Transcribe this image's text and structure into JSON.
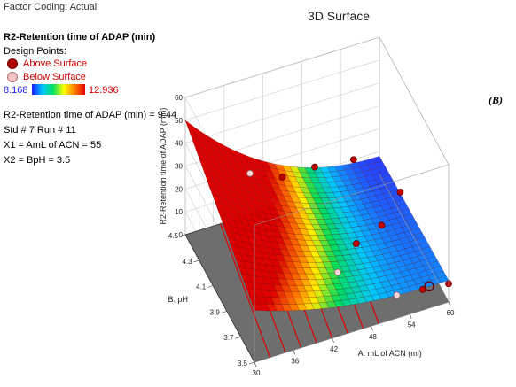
{
  "factor_coding": "Factor Coding: Actual",
  "response_title": "R2-Retention time of ADAP (min)",
  "design_points_label": "Design Points:",
  "legend": {
    "above": "Above Surface",
    "below": "Below Surface"
  },
  "color_scale": {
    "min": "8.168",
    "max": "12.936",
    "min_color": "#1a1aff",
    "max_color": "#e00000"
  },
  "info": [
    "R2-Retention time of ADAP (min) = 9.44",
    "Std # 7 Run # 11",
    "X1 = AmL of ACN = 55",
    "X2 = BpH = 3.5"
  ],
  "panel_letter": "(B)",
  "chart_data": {
    "type": "surface3d",
    "title": "3D Surface",
    "xlabel": "A: mL of ACN (ml)",
    "ylabel": "B: pH",
    "zlabel": "R2-Retention time of ADAP (min)",
    "x_ticks": [
      "30",
      "36",
      "42",
      "48",
      "54",
      "60"
    ],
    "y_ticks": [
      "3.5",
      "3.7",
      "3.9",
      "4.1",
      "4.3",
      "4.5"
    ],
    "z_ticks": [
      "0",
      "10",
      "20",
      "30",
      "40",
      "50",
      "60"
    ],
    "xlim": [
      30,
      60
    ],
    "ylim": [
      3.5,
      4.5
    ],
    "zlim": [
      0,
      60
    ],
    "surface_high_corner": {
      "x": 30,
      "y": 4.5,
      "z": 50
    },
    "surface_low_corner": {
      "x": 60,
      "y": 3.5,
      "z": 8
    },
    "design_points": [
      {
        "x": 45,
        "y": 4.5,
        "z": 12,
        "position": "above"
      },
      {
        "x": 50,
        "y": 4.5,
        "z": 12,
        "position": "above"
      },
      {
        "x": 56,
        "y": 4.5,
        "z": 10,
        "position": "above"
      },
      {
        "x": 60,
        "y": 4.2,
        "z": 9,
        "position": "above"
      },
      {
        "x": 55,
        "y": 4.0,
        "z": 10,
        "position": "above"
      },
      {
        "x": 50,
        "y": 3.9,
        "z": 12,
        "position": "above"
      },
      {
        "x": 60,
        "y": 3.5,
        "z": 8,
        "position": "above"
      },
      {
        "x": 56,
        "y": 3.5,
        "z": 9,
        "position": "above"
      },
      {
        "x": 45,
        "y": 3.7,
        "z": 15,
        "position": "below"
      },
      {
        "x": 52,
        "y": 3.5,
        "z": 10,
        "position": "below"
      },
      {
        "x": 40,
        "y": 4.5,
        "z": 18,
        "position": "below"
      }
    ]
  }
}
